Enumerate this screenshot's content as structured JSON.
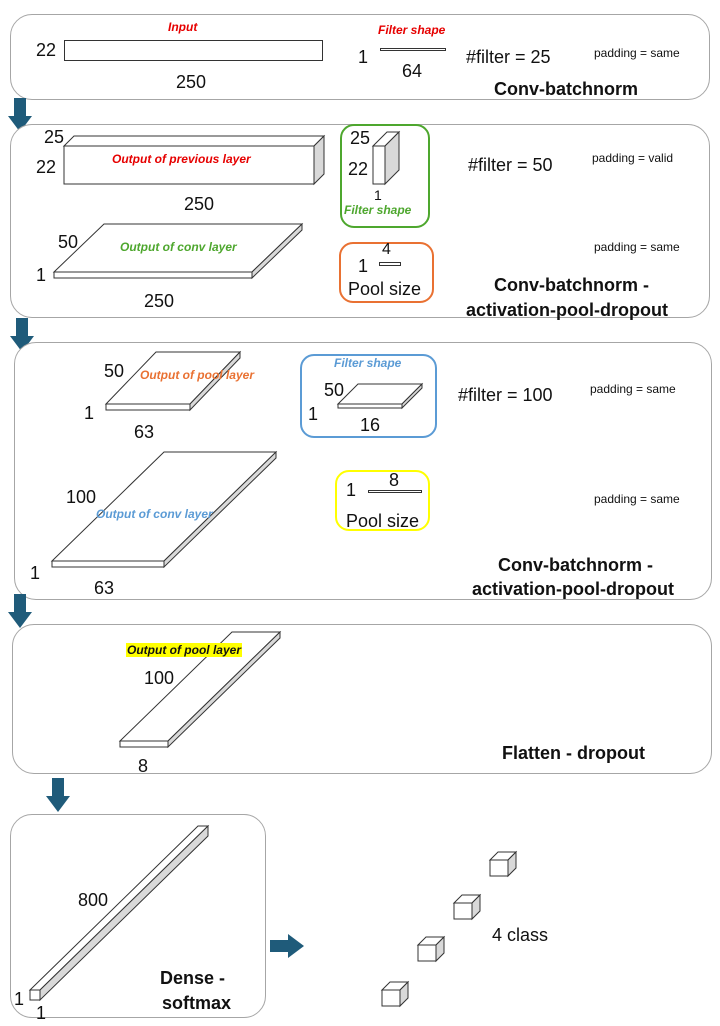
{
  "colors": {
    "red": "#e60000",
    "green": "#4ea72e",
    "orange": "#e97132",
    "blue": "#5b9bd5",
    "yellow": "#ffff00",
    "arrow": "#1f5b7a",
    "panel_border": "#a6a6a6"
  },
  "p1": {
    "dim_h": "22",
    "dim_w": "250",
    "input_label": "Input",
    "filter_label": "Filter shape",
    "filter_1": "1",
    "filter_64": "64",
    "nfilter": "#filter = 25",
    "padding": "padding = same",
    "title": "Conv-batchnorm"
  },
  "p2": {
    "dim_d": "25",
    "dim_h": "22",
    "dim_w": "250",
    "prev_label": "Output of previous layer",
    "f_25": "25",
    "f_22": "22",
    "f_1": "1",
    "filter_label": "Filter shape",
    "nfilter": "#filter = 50",
    "padding1": "padding = valid",
    "conv_label": "Output of conv layer",
    "c_50": "50",
    "c_1": "1",
    "c_250": "250",
    "pool_1": "1",
    "pool_4": "4",
    "pool_label": "Pool size",
    "padding2": "padding = same",
    "title1": "Conv-batchnorm -",
    "title2": "activation-pool-dropout"
  },
  "p3": {
    "pl_50": "50",
    "pl_label": "Output of pool layer",
    "pl_1": "1",
    "pl_63": "63",
    "filter_label": "Filter shape",
    "f_50": "50",
    "f_1": "1",
    "f_16": "16",
    "nfilter": "#filter = 100",
    "padding1": "padding = same",
    "c_100": "100",
    "conv_label": "Output of conv layer",
    "c_1": "1",
    "c_63": "63",
    "pool_1": "1",
    "pool_8": "8",
    "pool_label": "Pool size",
    "padding2": "padding = same",
    "title1": "Conv-batchnorm -",
    "title2": "activation-pool-dropout"
  },
  "p4": {
    "label": "Output of pool layer",
    "d_100": "100",
    "d_8": "8",
    "title": "Flatten - dropout"
  },
  "p5": {
    "d_800": "800",
    "d_1a": "1",
    "d_1b": "1",
    "title1": "Dense -",
    "title2": "softmax"
  },
  "out": {
    "label": "4 class"
  }
}
